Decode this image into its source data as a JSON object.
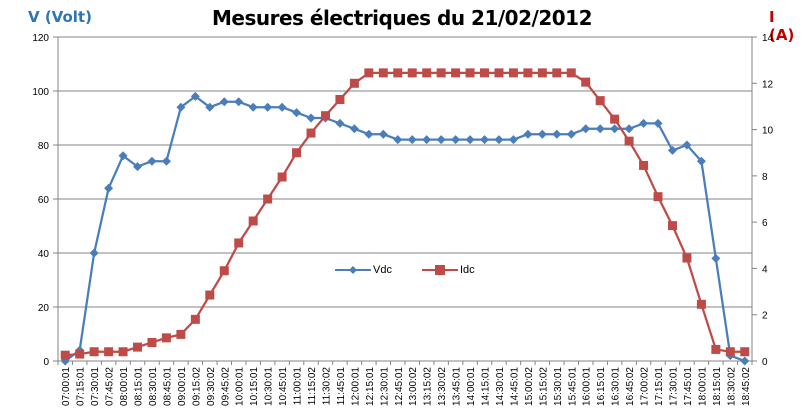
{
  "chart_data": {
    "type": "line",
    "title": "Mesures électriques du 21/02/2012",
    "ylabel_left": "V (Volt)",
    "ylabel_right": "I (A)",
    "xlabel": "",
    "ylim_left": [
      0,
      120
    ],
    "yticks_left": [
      0,
      20,
      40,
      60,
      80,
      100,
      120
    ],
    "ylim_right": [
      0,
      14
    ],
    "yticks_right": [
      0,
      2,
      4,
      6,
      8,
      10,
      12,
      14
    ],
    "grid": true,
    "legend_position": "inside-center",
    "categories": [
      "07:00:01",
      "07:15:01",
      "07:30:01",
      "07:45:02",
      "08:00:01",
      "08:15:01",
      "08:30:01",
      "08:45:01",
      "09:00:01",
      "09:15:02",
      "09:30:02",
      "09:45:02",
      "10:00:01",
      "10:15:01",
      "10:30:01",
      "10:45:01",
      "11:00:01",
      "11:15:02",
      "11:30:02",
      "11:45:01",
      "12:00:01",
      "12:15:01",
      "12:30:01",
      "12:45:01",
      "13:00:02",
      "13:15:02",
      "13:30:02",
      "13:45:01",
      "14:00:01",
      "14:15:01",
      "14:30:01",
      "14:45:01",
      "15:00:02",
      "15:15:02",
      "15:30:01",
      "15:45:01",
      "16:00:01",
      "16:15:01",
      "16:30:01",
      "16:45:02",
      "17:00:02",
      "17:15:01",
      "17:30:01",
      "17:45:01",
      "18:00:01",
      "18:15:01",
      "18:30:02",
      "18:45:02"
    ],
    "series": [
      {
        "name": "Vdc",
        "axis": "left",
        "color": "#4A7EBB",
        "marker": "diamond",
        "values": [
          0,
          4,
          40,
          64,
          76,
          72,
          74,
          74,
          94,
          98,
          94,
          96,
          96,
          94,
          94,
          94,
          92,
          90,
          90,
          88,
          86,
          84,
          84,
          82,
          82,
          82,
          82,
          82,
          82,
          82,
          82,
          82,
          84,
          84,
          84,
          84,
          86,
          86,
          86,
          86,
          88,
          88,
          78,
          80,
          74,
          38,
          2,
          0
        ]
      },
      {
        "name": "Idc",
        "axis": "right",
        "color": "#BE4B48",
        "marker": "square",
        "values": [
          0.25,
          0.3,
          0.4,
          0.4,
          0.4,
          0.6,
          0.8,
          1.0,
          1.15,
          1.8,
          2.85,
          3.9,
          5.1,
          6.05,
          7.0,
          7.95,
          9.0,
          9.85,
          10.6,
          11.3,
          12.0,
          12.45,
          12.45,
          12.45,
          12.45,
          12.45,
          12.45,
          12.45,
          12.45,
          12.45,
          12.45,
          12.45,
          12.45,
          12.45,
          12.45,
          12.45,
          12.05,
          11.25,
          10.45,
          9.5,
          8.45,
          7.1,
          5.85,
          4.45,
          2.45,
          0.5,
          0.4,
          0.4
        ]
      }
    ]
  },
  "legend": {
    "vdc_label": "Vdc",
    "idc_label": "Idc"
  }
}
